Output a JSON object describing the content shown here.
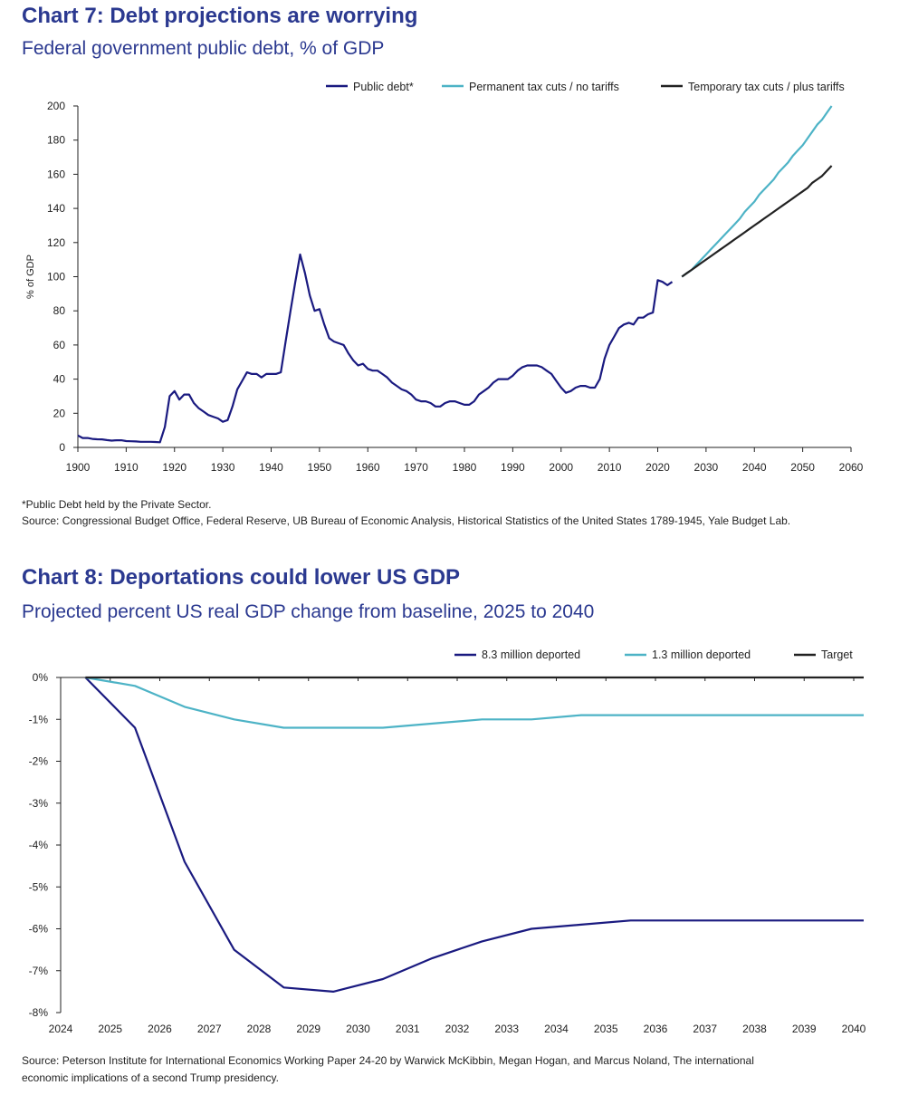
{
  "chart7": {
    "title": "Chart 7: Debt projections are worrying",
    "subtitle": "Federal government public debt, % of GDP",
    "footnote": "*Public Debt held by the Private Sector.",
    "source": "Source: Congressional Budget Office, Federal Reserve, UB Bureau of Economic Analysis, Historical Statistics of the United States 1789-1945, Yale Budget Lab."
  },
  "chart8": {
    "title": "Chart 8: Deportations could lower US GDP",
    "subtitle": "Projected percent US real GDP change from baseline, 2025 to 2040",
    "source_line1": "Source: Peterson Institute for International Economics Working Paper 24-20 by Warwick McKibbin, Megan Hogan, and Marcus Noland, The international",
    "source_line2": "economic implications of a second Trump presidency."
  },
  "chart_data": [
    {
      "type": "line",
      "title": "Chart 7: Debt projections are worrying",
      "subtitle": "Federal government public debt, % of GDP",
      "ylabel": "% of GDP",
      "xlabel": "",
      "xlim": [
        1900,
        2060
      ],
      "ylim": [
        0,
        200
      ],
      "x_ticks": [
        1900,
        1910,
        1920,
        1930,
        1940,
        1950,
        1960,
        1970,
        1980,
        1990,
        2000,
        2010,
        2020,
        2030,
        2040,
        2050,
        2060
      ],
      "y_ticks": [
        0,
        20,
        40,
        60,
        80,
        100,
        120,
        140,
        160,
        180,
        200
      ],
      "legend_position": "top-right",
      "series": [
        {
          "name": "Public debt*",
          "color": "#1a1a80",
          "points": [
            [
              1900,
              7
            ],
            [
              1901,
              5.5
            ],
            [
              1902,
              5.5
            ],
            [
              1903,
              5
            ],
            [
              1904,
              4.8
            ],
            [
              1905,
              4.7
            ],
            [
              1906,
              4.3
            ],
            [
              1907,
              4
            ],
            [
              1908,
              4.2
            ],
            [
              1909,
              4.2
            ],
            [
              1910,
              3.7
            ],
            [
              1911,
              3.6
            ],
            [
              1912,
              3.5
            ],
            [
              1913,
              3.3
            ],
            [
              1914,
              3.3
            ],
            [
              1915,
              3.3
            ],
            [
              1916,
              3.2
            ],
            [
              1917,
              3
            ],
            [
              1918,
              12
            ],
            [
              1919,
              30
            ],
            [
              1920,
              33
            ],
            [
              1921,
              28
            ],
            [
              1922,
              31
            ],
            [
              1923,
              31
            ],
            [
              1924,
              26
            ],
            [
              1925,
              23
            ],
            [
              1926,
              21
            ],
            [
              1927,
              19
            ],
            [
              1928,
              18
            ],
            [
              1929,
              17
            ],
            [
              1930,
              15
            ],
            [
              1931,
              16
            ],
            [
              1932,
              24
            ],
            [
              1933,
              34
            ],
            [
              1934,
              39
            ],
            [
              1935,
              44
            ],
            [
              1936,
              43
            ],
            [
              1937,
              43
            ],
            [
              1938,
              41
            ],
            [
              1939,
              43
            ],
            [
              1940,
              43
            ],
            [
              1941,
              43
            ],
            [
              1942,
              44
            ],
            [
              1943,
              62
            ],
            [
              1944,
              80
            ],
            [
              1945,
              97
            ],
            [
              1946,
              113
            ],
            [
              1947,
              102
            ],
            [
              1948,
              89
            ],
            [
              1949,
              80
            ],
            [
              1950,
              81
            ],
            [
              1951,
              72
            ],
            [
              1952,
              64
            ],
            [
              1953,
              62
            ],
            [
              1954,
              61
            ],
            [
              1955,
              60
            ],
            [
              1956,
              55
            ],
            [
              1957,
              51
            ],
            [
              1958,
              48
            ],
            [
              1959,
              49
            ],
            [
              1960,
              46
            ],
            [
              1961,
              45
            ],
            [
              1962,
              45
            ],
            [
              1963,
              43
            ],
            [
              1964,
              41
            ],
            [
              1965,
              38
            ],
            [
              1966,
              36
            ],
            [
              1967,
              34
            ],
            [
              1968,
              33
            ],
            [
              1969,
              31
            ],
            [
              1970,
              28
            ],
            [
              1971,
              27
            ],
            [
              1972,
              27
            ],
            [
              1973,
              26
            ],
            [
              1974,
              24
            ],
            [
              1975,
              24
            ],
            [
              1976,
              26
            ],
            [
              1977,
              27
            ],
            [
              1978,
              27
            ],
            [
              1979,
              26
            ],
            [
              1980,
              25
            ],
            [
              1981,
              25
            ],
            [
              1982,
              27
            ],
            [
              1983,
              31
            ],
            [
              1984,
              33
            ],
            [
              1985,
              35
            ],
            [
              1986,
              38
            ],
            [
              1987,
              40
            ],
            [
              1988,
              40
            ],
            [
              1989,
              40
            ],
            [
              1990,
              42
            ],
            [
              1991,
              45
            ],
            [
              1992,
              47
            ],
            [
              1993,
              48
            ],
            [
              1994,
              48
            ],
            [
              1995,
              48
            ],
            [
              1996,
              47
            ],
            [
              1997,
              45
            ],
            [
              1998,
              43
            ],
            [
              1999,
              39
            ],
            [
              2000,
              35
            ],
            [
              2001,
              32
            ],
            [
              2002,
              33
            ],
            [
              2003,
              35
            ],
            [
              2004,
              36
            ],
            [
              2005,
              36
            ],
            [
              2006,
              35
            ],
            [
              2007,
              35
            ],
            [
              2008,
              40
            ],
            [
              2009,
              52
            ],
            [
              2010,
              60
            ],
            [
              2011,
              65
            ],
            [
              2012,
              70
            ],
            [
              2013,
              72
            ],
            [
              2014,
              73
            ],
            [
              2015,
              72
            ],
            [
              2016,
              76
            ],
            [
              2017,
              76
            ],
            [
              2018,
              78
            ],
            [
              2019,
              79
            ],
            [
              2020,
              98
            ],
            [
              2021,
              97
            ],
            [
              2022,
              95
            ],
            [
              2023,
              97
            ]
          ]
        },
        {
          "name": "Permanent tax cuts / no tariffs",
          "color": "#4db3c6",
          "points": [
            [
              2025,
              100
            ],
            [
              2026,
              102
            ],
            [
              2027,
              104
            ],
            [
              2028,
              107
            ],
            [
              2029,
              110
            ],
            [
              2030,
              113
            ],
            [
              2031,
              116
            ],
            [
              2032,
              119
            ],
            [
              2033,
              122
            ],
            [
              2034,
              125
            ],
            [
              2035,
              128
            ],
            [
              2036,
              131
            ],
            [
              2037,
              134
            ],
            [
              2038,
              138
            ],
            [
              2039,
              141
            ],
            [
              2040,
              144
            ],
            [
              2041,
              148
            ],
            [
              2042,
              151
            ],
            [
              2043,
              154
            ],
            [
              2044,
              157
            ],
            [
              2045,
              161
            ],
            [
              2046,
              164
            ],
            [
              2047,
              167
            ],
            [
              2048,
              171
            ],
            [
              2049,
              174
            ],
            [
              2050,
              177
            ],
            [
              2051,
              181
            ],
            [
              2052,
              185
            ],
            [
              2053,
              189
            ],
            [
              2054,
              192
            ],
            [
              2055,
              196
            ],
            [
              2056,
              200
            ]
          ]
        },
        {
          "name": "Temporary tax cuts / plus tariffs",
          "color": "#222222",
          "points": [
            [
              2025,
              100
            ],
            [
              2026,
              102
            ],
            [
              2027,
              104
            ],
            [
              2028,
              106
            ],
            [
              2029,
              108
            ],
            [
              2030,
              110
            ],
            [
              2031,
              112
            ],
            [
              2032,
              114
            ],
            [
              2033,
              116
            ],
            [
              2034,
              118
            ],
            [
              2035,
              120
            ],
            [
              2036,
              122
            ],
            [
              2037,
              124
            ],
            [
              2038,
              126
            ],
            [
              2039,
              128
            ],
            [
              2040,
              130
            ],
            [
              2041,
              132
            ],
            [
              2042,
              134
            ],
            [
              2043,
              136
            ],
            [
              2044,
              138
            ],
            [
              2045,
              140
            ],
            [
              2046,
              142
            ],
            [
              2047,
              144
            ],
            [
              2048,
              146
            ],
            [
              2049,
              148
            ],
            [
              2050,
              150
            ],
            [
              2051,
              152
            ],
            [
              2052,
              155
            ],
            [
              2053,
              157
            ],
            [
              2054,
              159
            ],
            [
              2055,
              162
            ],
            [
              2056,
              165
            ]
          ]
        }
      ]
    },
    {
      "type": "line",
      "title": "Chart 8: Deportations could lower US GDP",
      "subtitle": "Projected percent US real GDP change from baseline, 2025 to 2040",
      "xlabel": "",
      "ylabel": "",
      "x_ticks": [
        "2024",
        "2025",
        "2026",
        "2027",
        "2028",
        "2029",
        "2030",
        "2031",
        "2032",
        "2033",
        "2034",
        "2035",
        "2036",
        "2037",
        "2038",
        "2039",
        "2040"
      ],
      "y_ticks": [
        "0%",
        "-1%",
        "-2%",
        "-3%",
        "-4%",
        "-5%",
        "-6%",
        "-7%",
        "-8%"
      ],
      "ylim": [
        -8,
        0
      ],
      "xlim": [
        2024,
        2040
      ],
      "legend_position": "top-right",
      "series": [
        {
          "name": "8.3 million deported",
          "color": "#1a1a80",
          "points": [
            [
              2024.5,
              0
            ],
            [
              2025.5,
              -1.2
            ],
            [
              2026.5,
              -4.4
            ],
            [
              2027.5,
              -6.5
            ],
            [
              2028.5,
              -7.4
            ],
            [
              2029.5,
              -7.5
            ],
            [
              2030.5,
              -7.2
            ],
            [
              2031.5,
              -6.7
            ],
            [
              2032.5,
              -6.3
            ],
            [
              2033.5,
              -6.0
            ],
            [
              2034.5,
              -5.9
            ],
            [
              2035.5,
              -5.8
            ],
            [
              2036.5,
              -5.8
            ],
            [
              2037.5,
              -5.8
            ],
            [
              2038.5,
              -5.8
            ],
            [
              2039.5,
              -5.8
            ],
            [
              2040.2,
              -5.8
            ]
          ]
        },
        {
          "name": "1.3 million deported",
          "color": "#4db3c6",
          "points": [
            [
              2024.5,
              0
            ],
            [
              2025.5,
              -0.2
            ],
            [
              2026.5,
              -0.7
            ],
            [
              2027.5,
              -1.0
            ],
            [
              2028.5,
              -1.2
            ],
            [
              2029.5,
              -1.2
            ],
            [
              2030.5,
              -1.2
            ],
            [
              2031.5,
              -1.1
            ],
            [
              2032.5,
              -1.0
            ],
            [
              2033.5,
              -1.0
            ],
            [
              2034.5,
              -0.9
            ],
            [
              2035.5,
              -0.9
            ],
            [
              2036.5,
              -0.9
            ],
            [
              2037.5,
              -0.9
            ],
            [
              2038.5,
              -0.9
            ],
            [
              2039.5,
              -0.9
            ],
            [
              2040.2,
              -0.9
            ]
          ]
        },
        {
          "name": "Target",
          "color": "#222222",
          "points": [
            [
              2024.5,
              0
            ],
            [
              2040.2,
              0
            ]
          ]
        }
      ]
    }
  ]
}
